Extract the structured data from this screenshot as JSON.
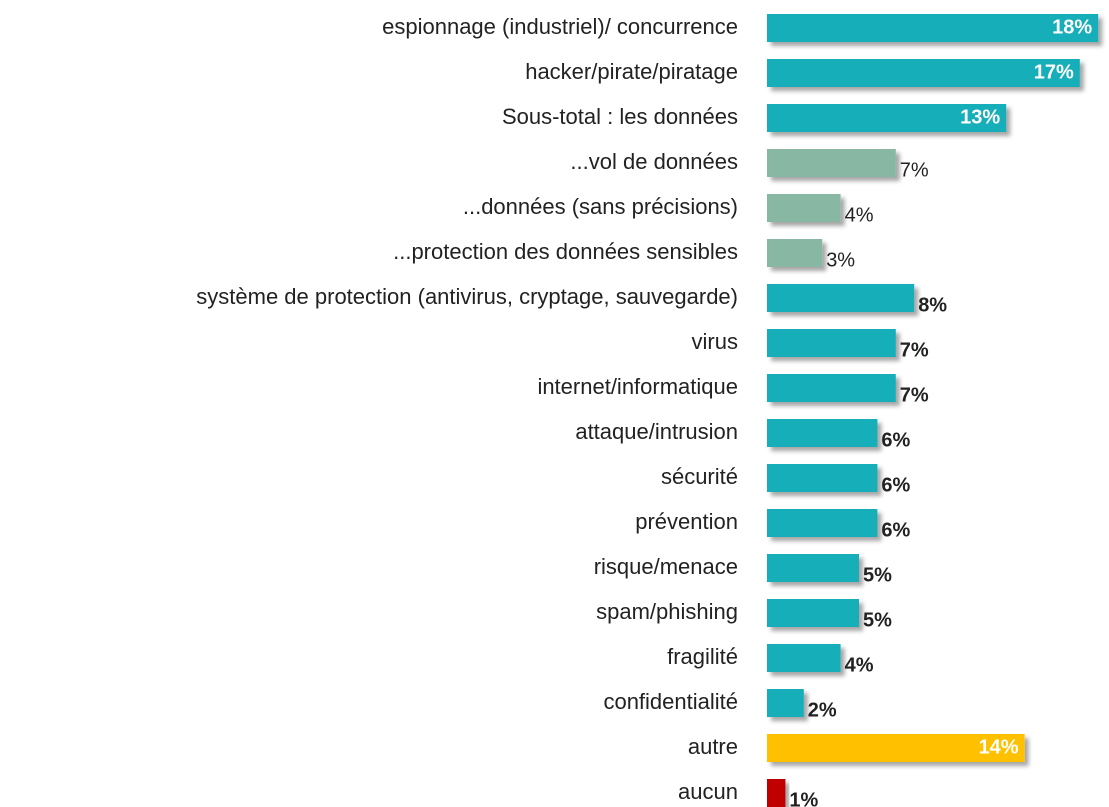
{
  "chart_data": {
    "type": "bar",
    "orientation": "horizontal",
    "categories": [
      "espionnage (industriel)/ concurrence",
      "hacker/pirate/piratage",
      "Sous-total : les données",
      "...vol de données",
      "...données (sans précisions)",
      "...protection des données sensibles",
      "système de protection (antivirus, cryptage, sauvegarde)",
      "virus",
      "internet/informatique",
      "attaque/intrusion",
      "sécurité",
      "prévention",
      "risque/menace",
      "spam/phishing",
      "fragilité",
      "confidentialité",
      "autre",
      "aucun"
    ],
    "values": [
      18,
      17,
      13,
      7,
      4,
      3,
      8,
      7,
      7,
      6,
      6,
      6,
      5,
      5,
      4,
      2,
      14,
      1
    ],
    "value_labels": [
      "18%",
      "17%",
      "13%",
      "7%",
      "4%",
      "3%",
      "8%",
      "7%",
      "7%",
      "6%",
      "6%",
      "6%",
      "5%",
      "5%",
      "4%",
      "2%",
      "14%",
      "1%"
    ],
    "colors": [
      "#17aeb9",
      "#17aeb9",
      "#17aeb9",
      "#88b7a3",
      "#88b7a3",
      "#88b7a3",
      "#17aeb9",
      "#17aeb9",
      "#17aeb9",
      "#17aeb9",
      "#17aeb9",
      "#17aeb9",
      "#17aeb9",
      "#17aeb9",
      "#17aeb9",
      "#17aeb9",
      "#ffc000",
      "#c00000"
    ],
    "label_bold": [
      true,
      true,
      true,
      false,
      false,
      false,
      true,
      true,
      true,
      true,
      true,
      true,
      true,
      true,
      true,
      true,
      true,
      true
    ]
  }
}
